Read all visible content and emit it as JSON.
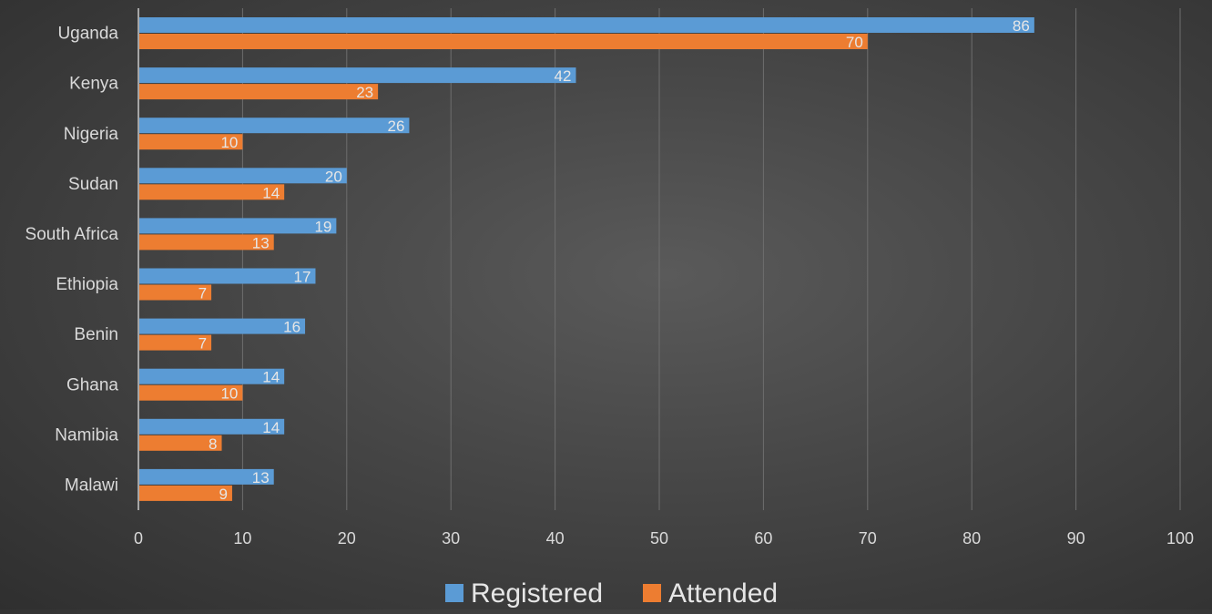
{
  "chart_data": {
    "type": "bar",
    "orientation": "horizontal",
    "categories": [
      "Uganda",
      "Kenya",
      "Nigeria",
      "Sudan",
      "South Africa",
      "Ethiopia",
      "Benin",
      "Ghana",
      "Namibia",
      "Malawi"
    ],
    "series": [
      {
        "name": "Registered",
        "color": "#5b9bd5",
        "values": [
          86,
          42,
          26,
          20,
          19,
          17,
          16,
          14,
          14,
          13
        ]
      },
      {
        "name": "Attended",
        "color": "#ed7d31",
        "values": [
          70,
          23,
          10,
          14,
          13,
          7,
          7,
          10,
          8,
          9
        ]
      }
    ],
    "xlim": [
      0,
      100
    ],
    "x_ticks": [
      "0",
      "10",
      "20",
      "30",
      "40",
      "50",
      "60",
      "70",
      "80",
      "90",
      "100"
    ],
    "grid": true,
    "data_labels": true,
    "legend_position": "bottom",
    "title": "",
    "xlabel": "",
    "ylabel": ""
  }
}
